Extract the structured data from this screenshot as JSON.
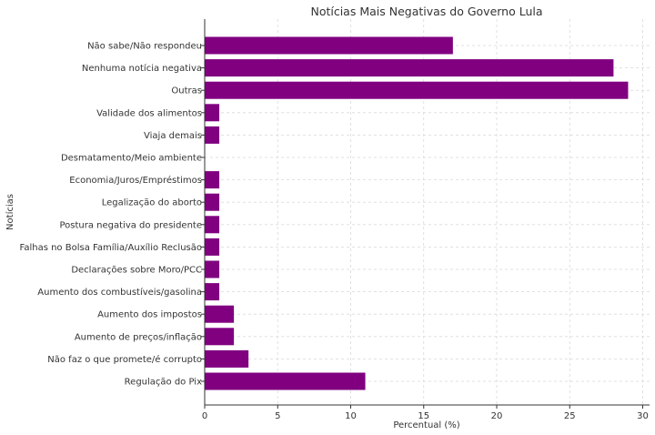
{
  "chart_data": {
    "type": "bar",
    "orientation": "horizontal",
    "title": "Notícias Mais Negativas do Governo Lula",
    "xlabel": "Percentual (%)",
    "ylabel": "Notícias",
    "xlim": [
      0,
      30
    ],
    "xticks": [
      0,
      5,
      10,
      15,
      20,
      25,
      30
    ],
    "grid": true,
    "bar_color": "#800080",
    "categories": [
      "Não sabe/Não respondeu",
      "Nenhuma notícia negativa",
      "Outras",
      "Validade dos alimentos",
      "Viaja demais",
      "Desmatamento/Meio ambiente",
      "Economia/Juros/Empréstimos",
      "Legalização do aborto",
      "Postura negativa do presidente",
      "Falhas no Bolsa Família/Auxílio Reclusão",
      "Declarações sobre Moro/PCC",
      "Aumento dos combustíveis/gasolina",
      "Aumento dos impostos",
      "Aumento de preços/inflação",
      "Não faz o que promete/é corrupto",
      "Regulação do Pix"
    ],
    "values": [
      17,
      28,
      29,
      1,
      1,
      0,
      1,
      1,
      1,
      1,
      1,
      1,
      2,
      2,
      3,
      11
    ]
  }
}
